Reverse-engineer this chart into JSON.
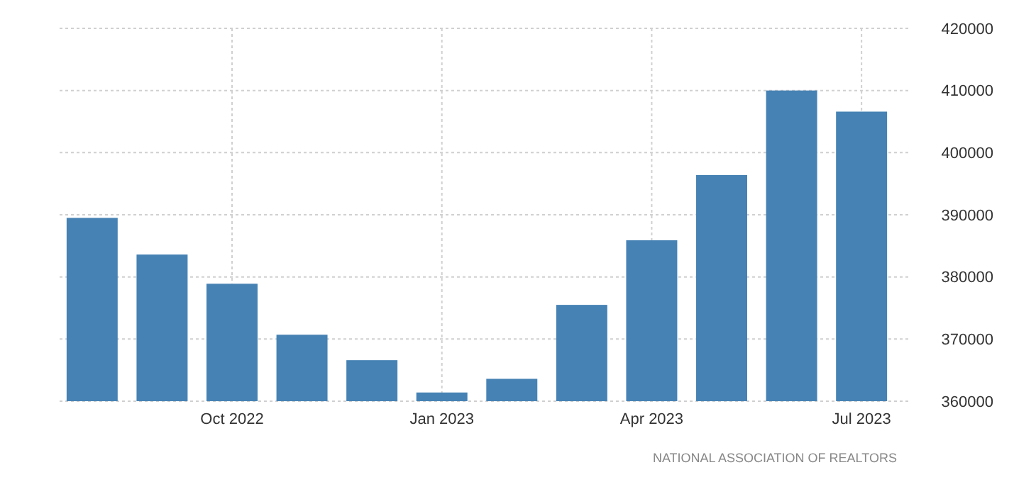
{
  "chart_data": {
    "type": "bar",
    "categories": [
      null,
      null,
      "Oct 2022",
      null,
      null,
      "Jan 2023",
      null,
      null,
      "Apr 2023",
      null,
      null,
      "Jul 2023"
    ],
    "values": [
      389500,
      383600,
      378900,
      370700,
      366600,
      361400,
      363600,
      375500,
      385900,
      396400,
      410000,
      406600
    ],
    "color": "#4682b4",
    "ylim": [
      360000,
      420000
    ],
    "yticks": [
      360000,
      370000,
      380000,
      390000,
      400000,
      410000,
      420000
    ],
    "grid": true,
    "annotations": [
      "NATIONAL ASSOCIATION OF REALTORS"
    ]
  }
}
